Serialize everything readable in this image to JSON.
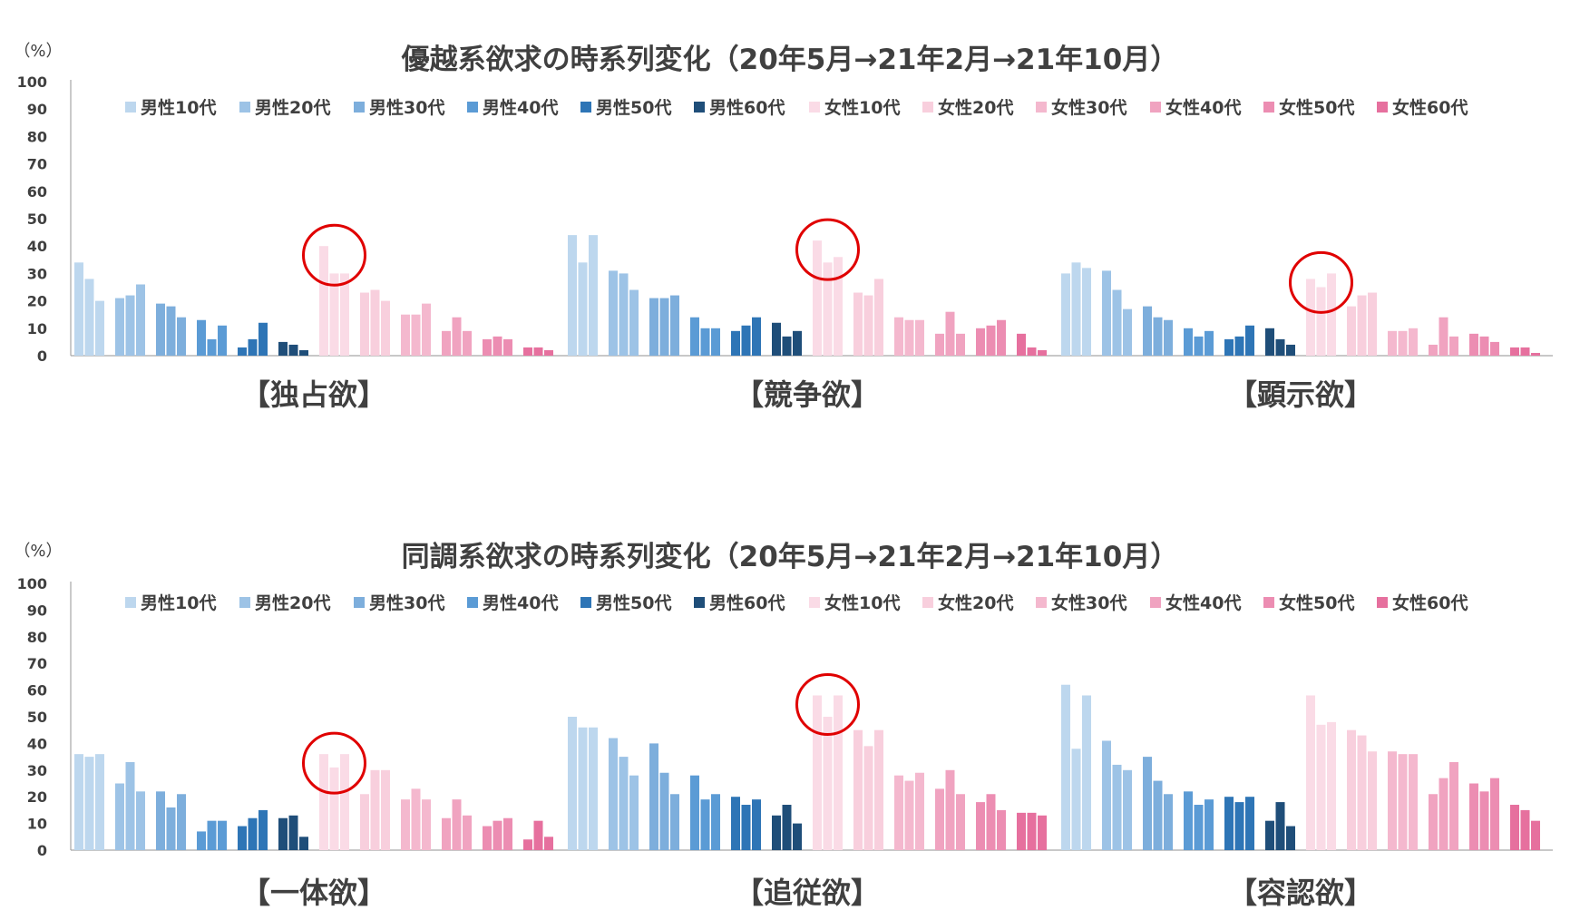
{
  "colors": {
    "series": [
      "#BDD7EE",
      "#9DC3E6",
      "#7DAEDC",
      "#5B9BD5",
      "#2E75B6",
      "#1F4E79",
      "#FADBE6",
      "#F8CFDD",
      "#F4B8CE",
      "#F0A3C0",
      "#EC8DB2",
      "#E6709E"
    ],
    "axis": "#A6A6A6",
    "text": "#404040",
    "circle": "#E00000"
  },
  "chart_data": [
    {
      "type": "bar",
      "title": "優越系欲求の時系列変化（20年5月→21年2月→21年10月）",
      "ylabel": "（%）",
      "ylim": [
        0,
        100
      ],
      "yticks": [
        "0",
        "10",
        "20",
        "30",
        "40",
        "50",
        "60",
        "70",
        "80",
        "90",
        "100"
      ],
      "legend": [
        "男性10代",
        "男性20代",
        "男性30代",
        "男性40代",
        "男性50代",
        "男性60代",
        "女性10代",
        "女性20代",
        "女性30代",
        "女性40代",
        "女性50代",
        "女性60代"
      ],
      "periods": [
        "20年5月",
        "21年2月",
        "21年10月"
      ],
      "groups": [
        {
          "label": "【独占欲】",
          "highlight": 6,
          "values": [
            [
              34,
              28,
              20
            ],
            [
              21,
              22,
              26
            ],
            [
              19,
              18,
              14
            ],
            [
              13,
              6,
              11
            ],
            [
              3,
              6,
              12
            ],
            [
              5,
              4,
              2
            ],
            [
              40,
              30,
              30
            ],
            [
              23,
              24,
              20
            ],
            [
              15,
              15,
              19
            ],
            [
              9,
              14,
              9
            ],
            [
              6,
              7,
              6
            ],
            [
              3,
              3,
              2
            ]
          ]
        },
        {
          "label": "【競争欲】",
          "highlight": 6,
          "values": [
            [
              44,
              34,
              44
            ],
            [
              31,
              30,
              24
            ],
            [
              21,
              21,
              22
            ],
            [
              14,
              10,
              10
            ],
            [
              9,
              11,
              14
            ],
            [
              12,
              7,
              9
            ],
            [
              42,
              34,
              36
            ],
            [
              23,
              22,
              28
            ],
            [
              14,
              13,
              13
            ],
            [
              8,
              16,
              8
            ],
            [
              10,
              11,
              13
            ],
            [
              8,
              3,
              2
            ]
          ]
        },
        {
          "label": "【顕示欲】",
          "highlight": 6,
          "values": [
            [
              30,
              34,
              32
            ],
            [
              31,
              24,
              17
            ],
            [
              18,
              14,
              13
            ],
            [
              10,
              7,
              9
            ],
            [
              6,
              7,
              11
            ],
            [
              10,
              6,
              4
            ],
            [
              28,
              25,
              30
            ],
            [
              18,
              22,
              23
            ],
            [
              9,
              9,
              10
            ],
            [
              4,
              14,
              7
            ],
            [
              8,
              7,
              5
            ],
            [
              3,
              3,
              1
            ]
          ]
        }
      ]
    },
    {
      "type": "bar",
      "title": "同調系欲求の時系列変化（20年5月→21年2月→21年10月）",
      "ylabel": "（%）",
      "ylim": [
        0,
        100
      ],
      "yticks": [
        "0",
        "10",
        "20",
        "30",
        "40",
        "50",
        "60",
        "70",
        "80",
        "90",
        "100"
      ],
      "legend": [
        "男性10代",
        "男性20代",
        "男性30代",
        "男性40代",
        "男性50代",
        "男性60代",
        "女性10代",
        "女性20代",
        "女性30代",
        "女性40代",
        "女性50代",
        "女性60代"
      ],
      "periods": [
        "20年5月",
        "21年2月",
        "21年10月"
      ],
      "groups": [
        {
          "label": "【一体欲】",
          "highlight": 6,
          "values": [
            [
              36,
              35,
              36
            ],
            [
              25,
              33,
              22
            ],
            [
              22,
              16,
              21
            ],
            [
              7,
              11,
              11
            ],
            [
              9,
              12,
              15
            ],
            [
              12,
              13,
              5
            ],
            [
              36,
              31,
              36
            ],
            [
              21,
              30,
              30
            ],
            [
              19,
              23,
              19
            ],
            [
              12,
              19,
              13
            ],
            [
              9,
              11,
              12
            ],
            [
              4,
              11,
              5
            ]
          ]
        },
        {
          "label": "【追従欲】",
          "highlight": 6,
          "values": [
            [
              50,
              46,
              46
            ],
            [
              42,
              35,
              28
            ],
            [
              40,
              29,
              21
            ],
            [
              28,
              19,
              21
            ],
            [
              20,
              17,
              19
            ],
            [
              13,
              17,
              10
            ],
            [
              58,
              50,
              58
            ],
            [
              45,
              39,
              45
            ],
            [
              28,
              26,
              29
            ],
            [
              23,
              30,
              21
            ],
            [
              18,
              21,
              15
            ],
            [
              14,
              14,
              13
            ]
          ]
        },
        {
          "label": "【容認欲】",
          "highlight": null,
          "values": [
            [
              62,
              38,
              58
            ],
            [
              41,
              32,
              30
            ],
            [
              35,
              26,
              21
            ],
            [
              22,
              17,
              19
            ],
            [
              20,
              18,
              20
            ],
            [
              11,
              18,
              9
            ],
            [
              58,
              47,
              48
            ],
            [
              45,
              43,
              37
            ],
            [
              37,
              36,
              36
            ],
            [
              21,
              27,
              33
            ],
            [
              25,
              22,
              27
            ],
            [
              17,
              15,
              11
            ]
          ]
        }
      ]
    }
  ]
}
